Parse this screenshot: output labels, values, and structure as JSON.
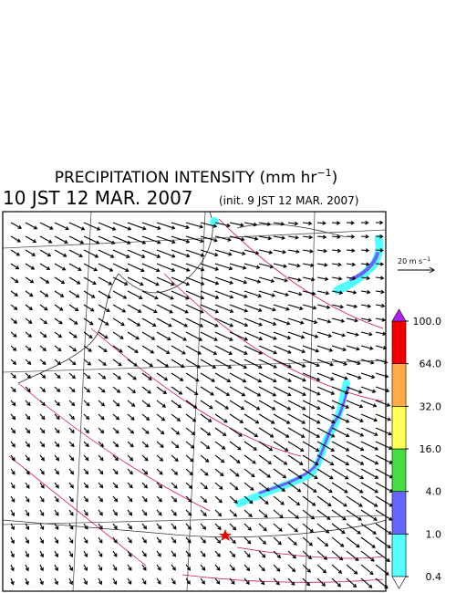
{
  "header": {
    "title": "PRECIPITATION INTENSITY (mm hr",
    "title_exponent": "−1",
    "title_close": ")",
    "valid_time": "10 JST 12 MAR. 2007",
    "init_note": "(init. 9 JST 12 MAR. 2007)"
  },
  "vector_key": {
    "label": "20 m s",
    "exponent": "−1"
  },
  "colorbar": {
    "levels": [
      0.4,
      {
        "value": 1,
        "label": "1.0"
      },
      {
        "value": 4,
        "label": "4.0"
      },
      {
        "value": 16,
        "label": "16.0"
      },
      {
        "value": 32,
        "label": "32.0"
      },
      {
        "value": 64,
        "label": "64.0"
      },
      {
        "value": 100,
        "label": "100.0"
      }
    ],
    "colors": [
      "#55ffff",
      "#6666ff",
      "#44dd44",
      "#ffff55",
      "#ffaa44",
      "#ee0000"
    ],
    "under_color": "#ffffff",
    "over_color": "#aa22ee"
  }
}
